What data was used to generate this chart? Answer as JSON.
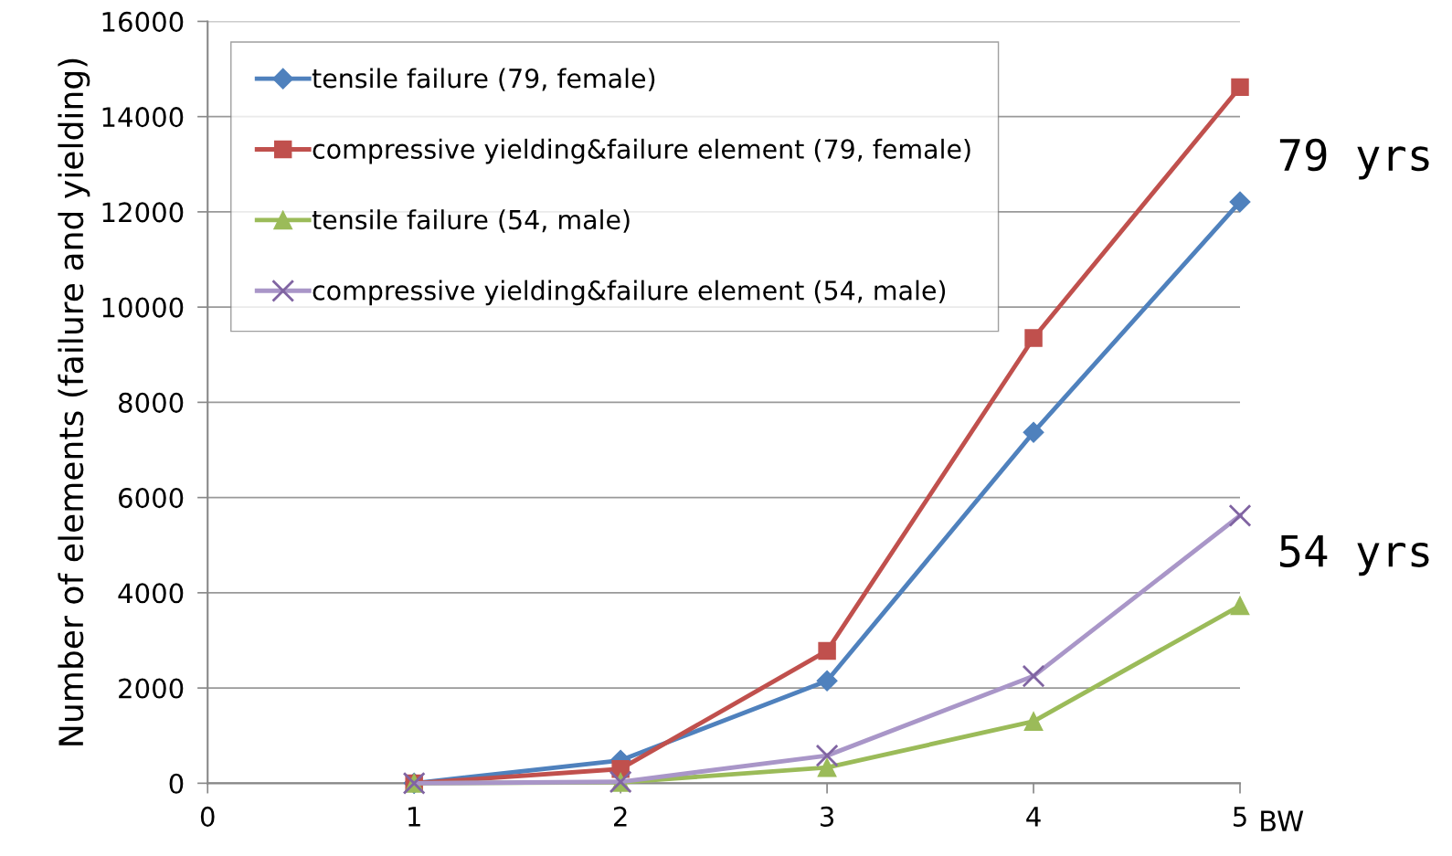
{
  "chart_data": {
    "type": "line",
    "ylabel": "Number of elements (failure and yielding)",
    "xlabel": "BW",
    "x": [
      1,
      2,
      3,
      4,
      5
    ],
    "xlim": [
      0,
      5
    ],
    "xticks": [
      0,
      1,
      2,
      3,
      4,
      5
    ],
    "ylim": [
      0,
      16000
    ],
    "yticks": [
      0,
      2000,
      4000,
      6000,
      8000,
      10000,
      12000,
      14000,
      16000
    ],
    "grid": "y",
    "legend": "top left",
    "series": [
      {
        "name": "tensile failure (79, female)",
        "color": "#4f81bd",
        "marker": "diamond",
        "values": [
          0,
          480,
          2150,
          7370,
          12210
        ]
      },
      {
        "name": "compressive yielding&failure element (79, female)",
        "color": "#c0504d",
        "marker": "square",
        "values": [
          0,
          300,
          2780,
          9350,
          14620
        ]
      },
      {
        "name": "tensile failure (54, male)",
        "color": "#9bbb59",
        "marker": "triangle",
        "values": [
          0,
          20,
          330,
          1300,
          3730
        ]
      },
      {
        "name": "compressive yielding&failure element (54, male)",
        "color": "#a996c8",
        "marker": "cross",
        "values": [
          0,
          30,
          580,
          2250,
          5620
        ]
      }
    ],
    "annotations": [
      "79 yrs",
      "54 yrs"
    ]
  }
}
